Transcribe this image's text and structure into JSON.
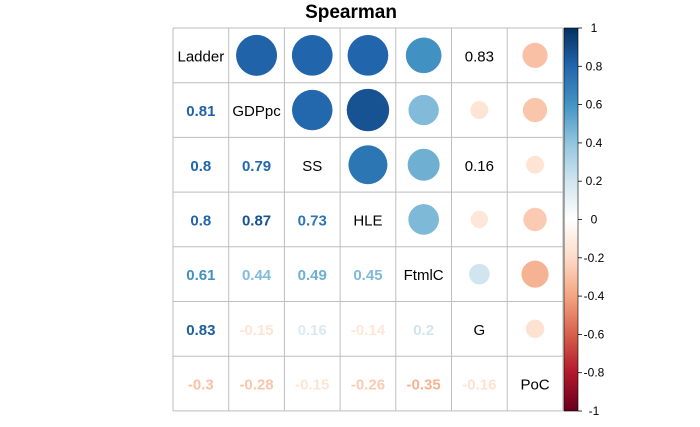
{
  "chart_data": {
    "type": "heatmap",
    "title": "Spearman",
    "variables": [
      "Ladder",
      "GDPpc",
      "SS",
      "HLE",
      "FtmlC",
      "G",
      "PoC"
    ],
    "matrix": [
      [
        1.0,
        0.81,
        0.8,
        0.8,
        0.61,
        0.83,
        -0.3
      ],
      [
        0.81,
        1.0,
        0.79,
        0.87,
        0.44,
        -0.15,
        -0.28
      ],
      [
        0.8,
        0.79,
        1.0,
        0.73,
        0.49,
        0.16,
        -0.15
      ],
      [
        0.8,
        0.87,
        0.73,
        1.0,
        0.45,
        -0.14,
        -0.26
      ],
      [
        0.61,
        0.44,
        0.49,
        0.45,
        1.0,
        0.2,
        -0.35
      ],
      [
        0.83,
        -0.15,
        0.16,
        -0.14,
        0.2,
        1.0,
        -0.16
      ],
      [
        -0.3,
        -0.28,
        -0.15,
        -0.26,
        -0.35,
        -0.16,
        1.0
      ]
    ],
    "cell_text": [
      [
        "",
        "",
        "",
        "",
        "",
        "0.83",
        ""
      ],
      [
        "0.81",
        "",
        "",
        "",
        "",
        "",
        ""
      ],
      [
        "0.8",
        "0.79",
        "",
        "",
        "",
        "0.16",
        ""
      ],
      [
        "0.8",
        "0.87",
        "0.73",
        "",
        "",
        "",
        ""
      ],
      [
        "0.61",
        "0.44",
        "0.49",
        "0.45",
        "",
        "",
        ""
      ],
      [
        "0.83",
        "-0.15",
        "0.16",
        "-0.14",
        "0.2",
        "",
        ""
      ],
      [
        "-0.3",
        "-0.28",
        "-0.15",
        "-0.26",
        "-0.35",
        "-0.16",
        ""
      ]
    ],
    "lower_style": "number",
    "upper_style": "circle",
    "colorbar": {
      "range": [
        -1,
        1
      ],
      "ticks": [
        "1",
        "0.8",
        "0.6",
        "0.4",
        "0.2",
        "0",
        "-0.2",
        "-0.4",
        "-0.6",
        "-0.8",
        "-1"
      ],
      "tick_values": [
        1,
        0.8,
        0.6,
        0.4,
        0.2,
        0,
        -0.2,
        -0.4,
        -0.6,
        -0.8,
        -1
      ],
      "colors": [
        "#67001F",
        "#B2182B",
        "#D6604D",
        "#F4A582",
        "#FDDBC7",
        "#FFFFFF",
        "#D1E5F0",
        "#92C5DE",
        "#4393C3",
        "#2166AC",
        "#053061"
      ]
    },
    "plain_text_color": "#000000",
    "grid_color": "#BEBEBE"
  }
}
